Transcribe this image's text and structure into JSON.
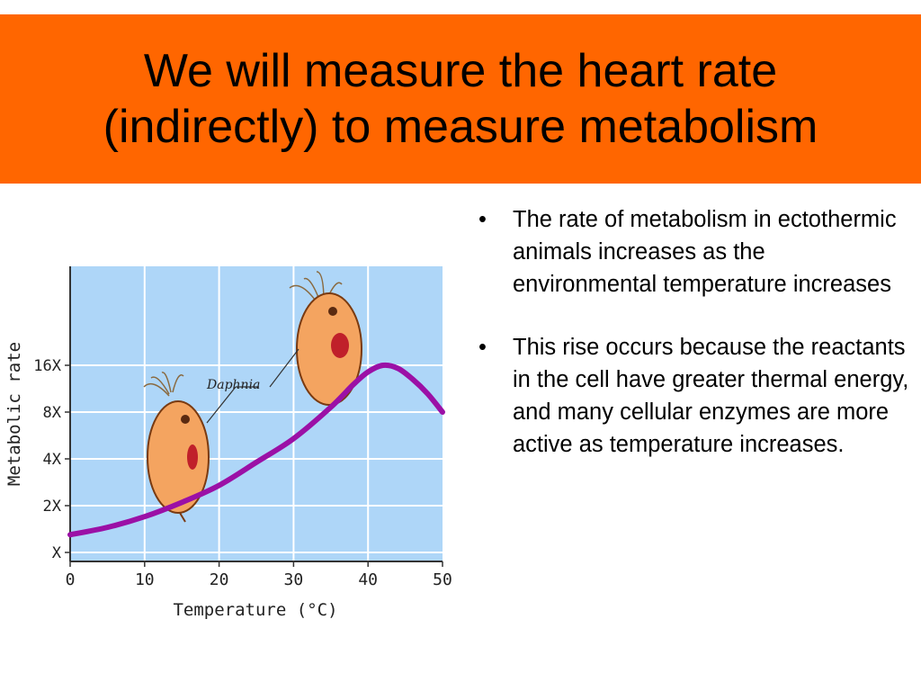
{
  "slide": {
    "title_lines": [
      "We will measure the heart rate",
      "(indirectly) to measure metabolism"
    ],
    "bullets": [
      "The rate of metabolism in ectothermic animals increases as the environmental temperature increases",
      "This rise occurs because the reactants in the cell have greater thermal energy, and many cellular enzymes are more active as temperature increases."
    ],
    "bullet_symbol": "•",
    "colors": {
      "title_background": "#ff6600",
      "plot_background": "#aed6f8",
      "curve": "#9b10a6"
    }
  },
  "chart_data": {
    "type": "line",
    "xlabel": "Temperature (°C)",
    "ylabel": "Metabolic rate",
    "xlim": [
      0,
      50
    ],
    "x_ticks": [
      "0",
      "10",
      "20",
      "30",
      "40",
      "50"
    ],
    "y_ticks": [
      "X",
      "2X",
      "4X",
      "8X",
      "16X"
    ],
    "y_tick_values": [
      1,
      2,
      4,
      8,
      16
    ],
    "y_scale": "log2",
    "grid": true,
    "annotation": "Daphnia",
    "series": [
      {
        "x": [
          0,
          5,
          10,
          15,
          20,
          25,
          30,
          35,
          38,
          40,
          42,
          44,
          46,
          48,
          50
        ],
        "y": [
          1.3,
          1.45,
          1.7,
          2.1,
          2.7,
          3.8,
          5.4,
          8.6,
          12,
          14.5,
          16,
          15.3,
          13,
          10.5,
          8
        ]
      }
    ]
  }
}
